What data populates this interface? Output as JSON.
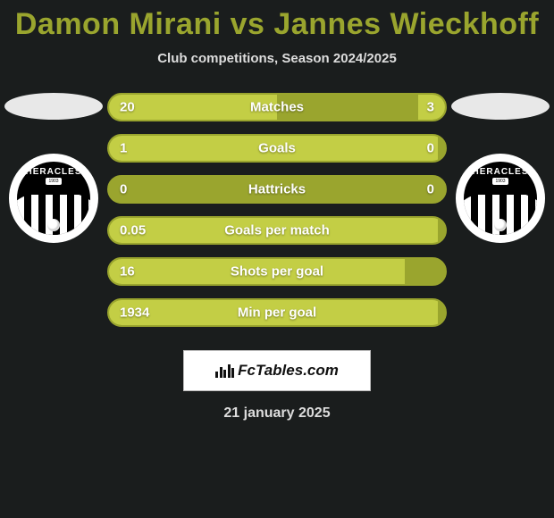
{
  "title": "Damon Mirani vs Jannes Wieckhoff",
  "subtitle": "Club competitions, Season 2024/2025",
  "date": "21 january 2025",
  "footer_brand": "FcTables.com",
  "colors": {
    "accent": "#9aa52e",
    "accent_light": "#c3ce45",
    "bg": "#1a1d1d",
    "text_light": "#dddddd",
    "white": "#ffffff"
  },
  "player_left": {
    "flag_color": "#e8e8e8",
    "club_name": "HERACLES",
    "club_year": "1903"
  },
  "player_right": {
    "flag_color": "#e8e8e8",
    "club_name": "HERACLES",
    "club_year": "1903"
  },
  "stats": [
    {
      "label": "Matches",
      "left_val": "20",
      "right_val": "3",
      "left_pct": 50,
      "right_pct": 8
    },
    {
      "label": "Goals",
      "left_val": "1",
      "right_val": "0",
      "left_pct": 98,
      "right_pct": 0
    },
    {
      "label": "Hattricks",
      "left_val": "0",
      "right_val": "0",
      "left_pct": 0,
      "right_pct": 0
    },
    {
      "label": "Goals per match",
      "left_val": "0.05",
      "right_val": "",
      "left_pct": 98,
      "right_pct": 0
    },
    {
      "label": "Shots per goal",
      "left_val": "16",
      "right_val": "",
      "left_pct": 88,
      "right_pct": 0
    },
    {
      "label": "Min per goal",
      "left_val": "1934",
      "right_val": "",
      "left_pct": 98,
      "right_pct": 0
    }
  ]
}
